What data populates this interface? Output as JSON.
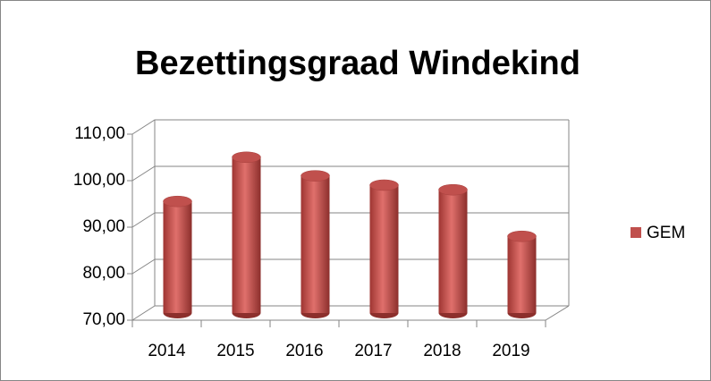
{
  "chart_data": {
    "type": "bar3d",
    "title": "Bezettingsgraad Windekind",
    "categories": [
      "2014",
      "2015",
      "2016",
      "2017",
      "2018",
      "2019"
    ],
    "series": [
      {
        "name": "GEM",
        "color": "#c0504d",
        "values": [
          94,
          103.5,
          99.5,
          97.5,
          96.5,
          86.5
        ]
      }
    ],
    "ylim": [
      70,
      110
    ],
    "yticks": [
      {
        "value": 70,
        "label": "70,00"
      },
      {
        "value": 80,
        "label": "80,00"
      },
      {
        "value": 90,
        "label": "90,00"
      },
      {
        "value": 100,
        "label": "100,00"
      },
      {
        "value": 110,
        "label": "110,00"
      }
    ],
    "grid": true,
    "legend": "right"
  }
}
